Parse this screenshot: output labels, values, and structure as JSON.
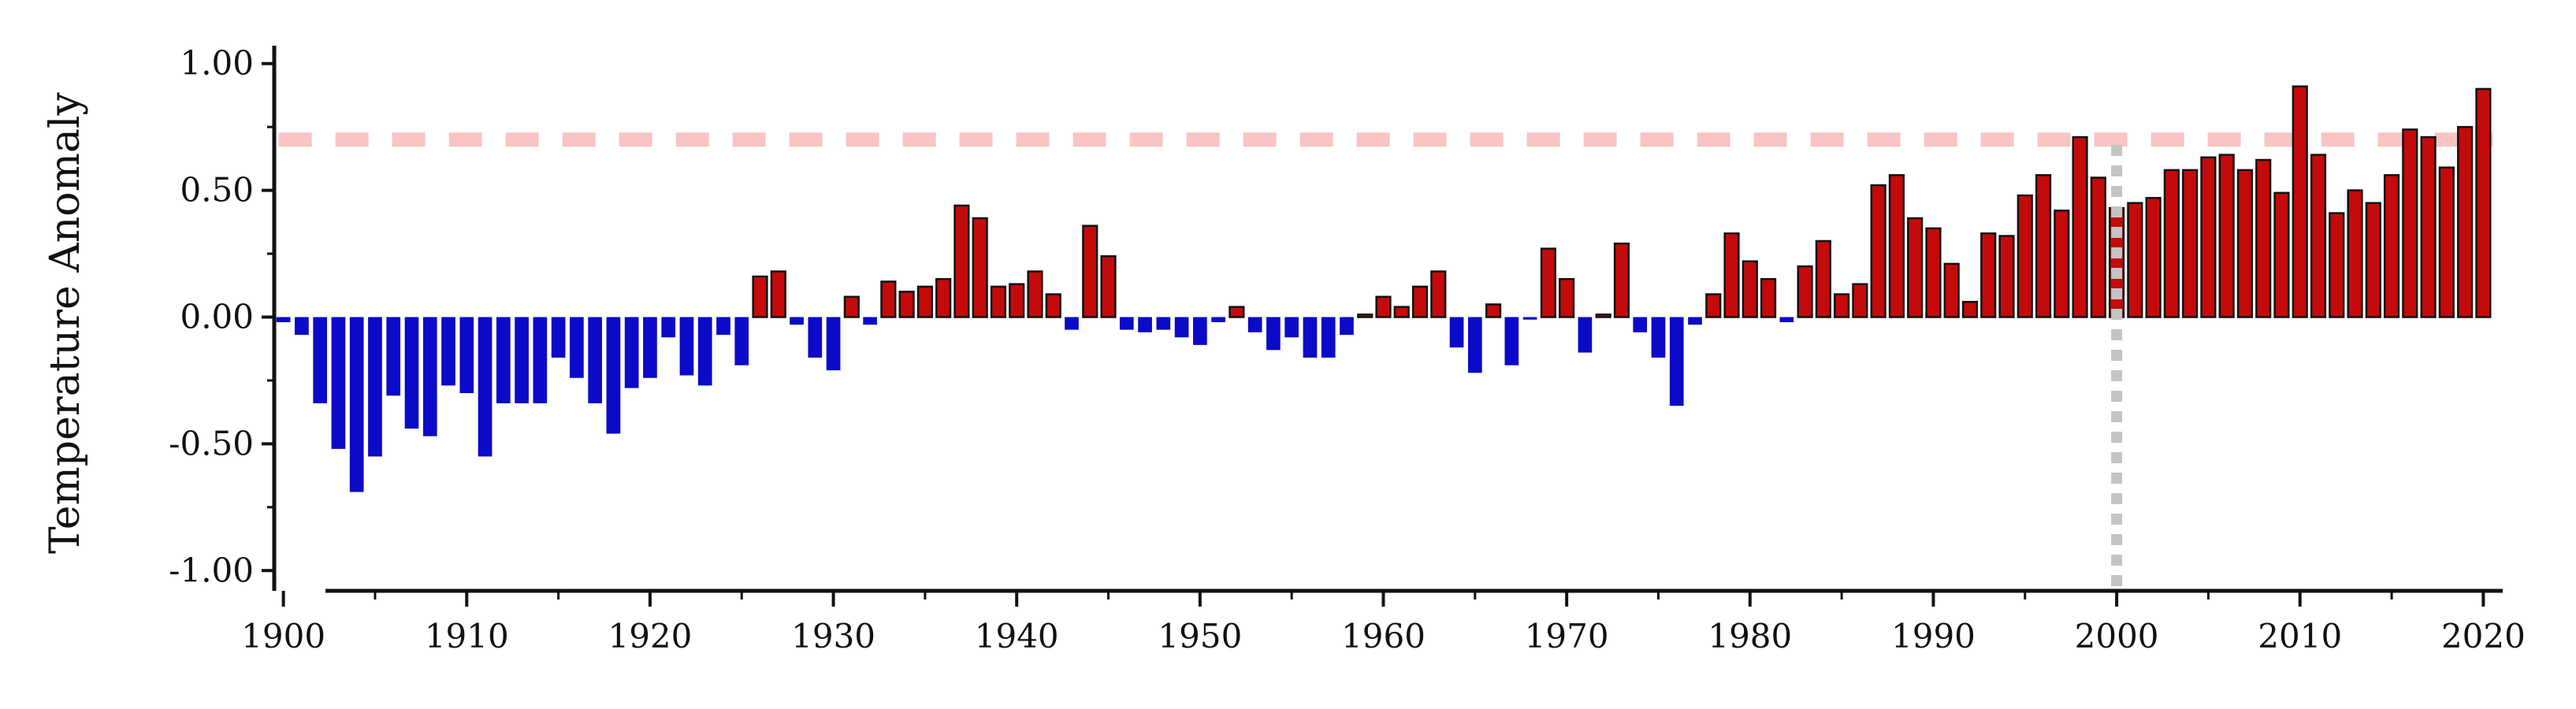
{
  "chart_data": {
    "type": "bar",
    "ylabel": "Temperature Anomaly",
    "xlabel": "",
    "title": "",
    "xlim": [
      1899.5,
      2020.8
    ],
    "ylim": [
      -1.08,
      1.08
    ],
    "x_ticks": [
      1900,
      1910,
      1920,
      1930,
      1940,
      1950,
      1960,
      1970,
      1980,
      1990,
      2000,
      2010,
      2020
    ],
    "y_ticks": [
      "-1.00",
      "-0.50",
      "0.00",
      "0.50",
      "1.00"
    ],
    "y_tick_values": [
      -1.0,
      -0.5,
      0.0,
      0.5,
      1.0
    ],
    "y_minor_ticks": [
      -0.75,
      -0.25,
      0.25,
      0.75
    ],
    "positive_color": "#c40a0a",
    "negative_color": "#0a0ac8",
    "bar_edge_color": "#111111",
    "reference_line": {
      "y": 0.7,
      "style": "dashed",
      "color": "#f9c4c4"
    },
    "vertical_marker": {
      "x": 2000,
      "style": "dotted",
      "color": "#c4c4c4"
    },
    "years": [
      1900,
      1901,
      1902,
      1903,
      1904,
      1905,
      1906,
      1907,
      1908,
      1909,
      1910,
      1911,
      1912,
      1913,
      1914,
      1915,
      1916,
      1917,
      1918,
      1919,
      1920,
      1921,
      1922,
      1923,
      1924,
      1925,
      1926,
      1927,
      1928,
      1929,
      1930,
      1931,
      1932,
      1933,
      1934,
      1935,
      1936,
      1937,
      1938,
      1939,
      1940,
      1941,
      1942,
      1943,
      1944,
      1945,
      1946,
      1947,
      1948,
      1949,
      1950,
      1951,
      1952,
      1953,
      1954,
      1955,
      1956,
      1957,
      1958,
      1959,
      1960,
      1961,
      1962,
      1963,
      1964,
      1965,
      1966,
      1967,
      1968,
      1969,
      1970,
      1971,
      1972,
      1973,
      1974,
      1975,
      1976,
      1977,
      1978,
      1979,
      1980,
      1981,
      1982,
      1983,
      1984,
      1985,
      1986,
      1987,
      1988,
      1989,
      1990,
      1991,
      1992,
      1993,
      1994,
      1995,
      1996,
      1997,
      1998,
      1999,
      2000,
      2001,
      2002,
      2003,
      2004,
      2005,
      2006,
      2007,
      2008,
      2009,
      2010,
      2011,
      2012,
      2013,
      2014,
      2015,
      2016,
      2017,
      2018,
      2019,
      2020
    ],
    "values": [
      -0.02,
      -0.07,
      -0.34,
      -0.52,
      -0.69,
      -0.55,
      -0.31,
      -0.44,
      -0.47,
      -0.27,
      -0.3,
      -0.55,
      -0.34,
      -0.34,
      -0.34,
      -0.16,
      -0.24,
      -0.34,
      -0.46,
      -0.28,
      -0.24,
      -0.08,
      -0.23,
      -0.27,
      -0.07,
      -0.19,
      0.16,
      0.18,
      -0.03,
      -0.16,
      -0.21,
      0.08,
      -0.03,
      0.14,
      0.1,
      0.12,
      0.15,
      0.44,
      0.39,
      0.12,
      0.13,
      0.18,
      0.09,
      -0.05,
      0.36,
      0.24,
      -0.05,
      -0.06,
      -0.05,
      -0.08,
      -0.11,
      -0.02,
      0.04,
      -0.06,
      -0.13,
      -0.08,
      -0.16,
      -0.16,
      -0.07,
      0.01,
      0.08,
      0.04,
      0.12,
      0.18,
      -0.12,
      -0.22,
      0.05,
      -0.19,
      -0.01,
      0.27,
      0.15,
      -0.14,
      0.01,
      0.29,
      -0.06,
      -0.16,
      -0.35,
      -0.03,
      0.09,
      0.33,
      0.22,
      0.15,
      -0.02,
      0.2,
      0.3,
      0.09,
      0.13,
      0.52,
      0.56,
      0.39,
      0.35,
      0.21,
      0.06,
      0.33,
      0.32,
      0.48,
      0.56,
      0.42,
      0.71,
      0.55,
      0.43,
      0.45,
      0.47,
      0.58,
      0.58,
      0.63,
      0.64,
      0.58,
      0.62,
      0.49,
      0.91,
      0.64,
      0.41,
      0.5,
      0.45,
      0.56,
      0.74,
      0.71,
      0.59,
      0.75,
      0.9
    ]
  }
}
